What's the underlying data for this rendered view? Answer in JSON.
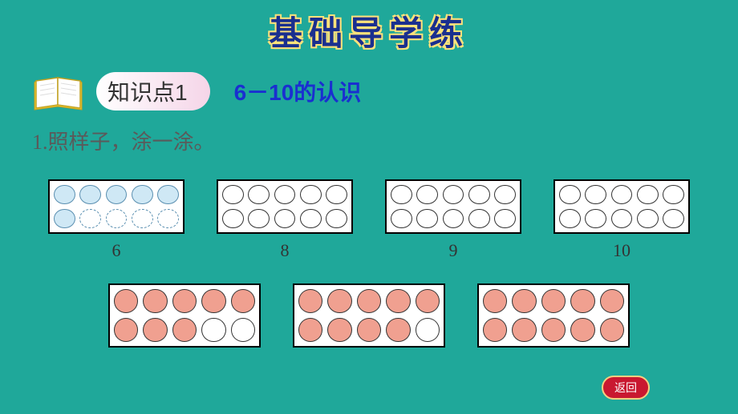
{
  "title": "基础导学练",
  "knowledge": {
    "label": "知识点1",
    "subtitle": "6－10的认识"
  },
  "instruction": "1.照样子，涂一涂。",
  "problem_grids": [
    {
      "label": "6",
      "cells": [
        "filled-blue",
        "filled-blue",
        "filled-blue",
        "filled-blue",
        "filled-blue",
        "filled-blue",
        "dashed",
        "dashed",
        "dashed",
        "dashed"
      ]
    },
    {
      "label": "8",
      "cells": [
        "empty",
        "empty",
        "empty",
        "empty",
        "empty",
        "empty",
        "empty",
        "empty",
        "empty",
        "empty"
      ]
    },
    {
      "label": "9",
      "cells": [
        "empty",
        "empty",
        "empty",
        "empty",
        "empty",
        "empty",
        "empty",
        "empty",
        "empty",
        "empty"
      ]
    },
    {
      "label": "10",
      "cells": [
        "empty",
        "empty",
        "empty",
        "empty",
        "empty",
        "empty",
        "empty",
        "empty",
        "empty",
        "empty"
      ]
    }
  ],
  "answer_grids": [
    {
      "cells": [
        "filled-salmon",
        "filled-salmon",
        "filled-salmon",
        "filled-salmon",
        "filled-salmon",
        "filled-salmon",
        "filled-salmon",
        "filled-salmon",
        "empty",
        "empty"
      ]
    },
    {
      "cells": [
        "filled-salmon",
        "filled-salmon",
        "filled-salmon",
        "filled-salmon",
        "filled-salmon",
        "filled-salmon",
        "filled-salmon",
        "filled-salmon",
        "filled-salmon",
        "empty"
      ]
    },
    {
      "cells": [
        "filled-salmon",
        "filled-salmon",
        "filled-salmon",
        "filled-salmon",
        "filled-salmon",
        "filled-salmon",
        "filled-salmon",
        "filled-salmon",
        "filled-salmon",
        "filled-salmon"
      ]
    }
  ],
  "return_label": "返回",
  "colors": {
    "bg": "#1fa89a",
    "title_fill": "#1a2f8f",
    "title_outline": "#ffe27a",
    "subtitle": "#1a2fd0",
    "instruction": "#5a5a5a",
    "salmon": "#f0a090",
    "blue_fill": "#cfe8f5",
    "return_bg": "#c91830",
    "return_border": "#f5d080"
  }
}
